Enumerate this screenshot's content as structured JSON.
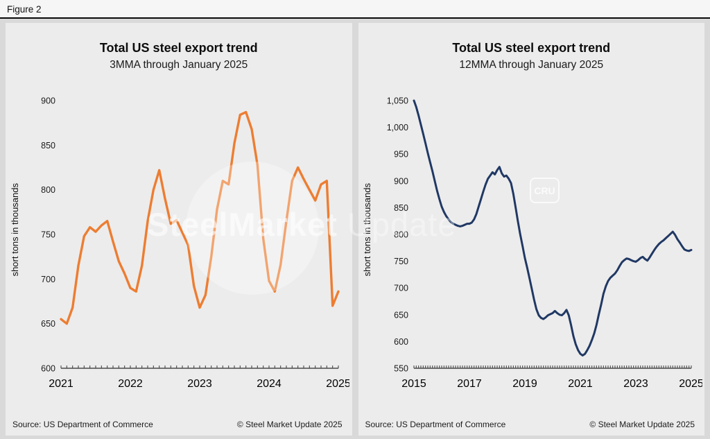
{
  "figure_label": "Figure 2",
  "watermark": {
    "part1": "SteelMarket",
    "part2": "Update",
    "cru": "CRU"
  },
  "footer": {
    "source": "Source: US Department of Commerce",
    "copyright": "© Steel Market Update 2025"
  },
  "chart_data": [
    {
      "type": "line",
      "title": "Total US steel export trend",
      "subtitle": "3MMA through January 2025",
      "ylabel": "short tons in thousands",
      "x_start_year": 2021,
      "x_frequency": "monthly",
      "x_end_label": "January 2025",
      "xticks": [
        2021,
        2022,
        2023,
        2024,
        2025
      ],
      "ylim": [
        600,
        900
      ],
      "ytick_step": 50,
      "grid": false,
      "legend": "none",
      "series": [
        {
          "name": "Total US steel exports, 3-month moving average",
          "color": "#ED7D31",
          "stroke_width": 3.4,
          "values": [
            655,
            650,
            668,
            715,
            748,
            758,
            753,
            760,
            765,
            742,
            720,
            706,
            690,
            686,
            715,
            765,
            800,
            822,
            790,
            762,
            766,
            752,
            738,
            692,
            668,
            682,
            725,
            778,
            810,
            806,
            852,
            884,
            887,
            868,
            828,
            745,
            698,
            686,
            716,
            765,
            810,
            825,
            812,
            800,
            788,
            806,
            810,
            670,
            686
          ]
        }
      ]
    },
    {
      "type": "line",
      "title": "Total US steel export trend",
      "subtitle": "12MMA through January 2025",
      "ylabel": "short tons in thousands",
      "x_start_year": 2015,
      "x_frequency": "monthly",
      "x_end_label": "January 2025",
      "xticks": [
        2015,
        2017,
        2019,
        2021,
        2023,
        2025
      ],
      "ylim": [
        550,
        1050
      ],
      "ytick_step": 50,
      "grid": false,
      "legend": "none",
      "series": [
        {
          "name": "Total US steel exports, 12-month moving average",
          "color": "#203864",
          "stroke_width": 3.0,
          "values": [
            1050,
            1038,
            1022,
            1005,
            988,
            970,
            952,
            935,
            918,
            900,
            882,
            866,
            852,
            842,
            834,
            828,
            823,
            820,
            818,
            816,
            815,
            816,
            818,
            820,
            820,
            822,
            828,
            838,
            852,
            866,
            880,
            893,
            904,
            910,
            916,
            912,
            920,
            926,
            914,
            908,
            910,
            904,
            896,
            876,
            850,
            824,
            800,
            778,
            756,
            738,
            718,
            698,
            678,
            660,
            649,
            644,
            642,
            645,
            649,
            651,
            653,
            657,
            653,
            650,
            649,
            653,
            659,
            649,
            630,
            610,
            595,
            584,
            577,
            574,
            577,
            584,
            592,
            603,
            615,
            631,
            651,
            669,
            689,
            703,
            713,
            719,
            723,
            727,
            733,
            741,
            748,
            752,
            755,
            754,
            752,
            750,
            749,
            752,
            756,
            758,
            754,
            751,
            757,
            764,
            771,
            777,
            782,
            786,
            789,
            793,
            797,
            801,
            805,
            799,
            791,
            785,
            778,
            772,
            770,
            769,
            771
          ]
        }
      ]
    }
  ]
}
